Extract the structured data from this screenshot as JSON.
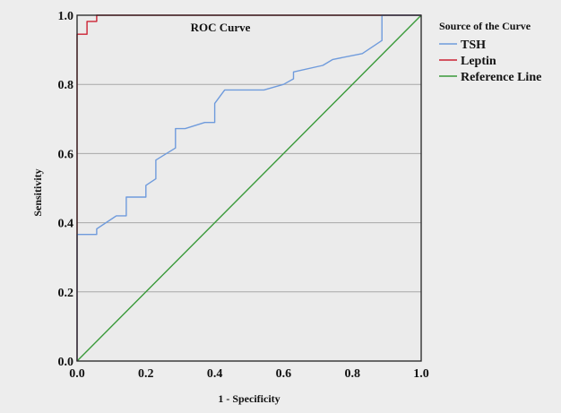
{
  "chart_data": {
    "type": "line",
    "title": "ROC Curve",
    "xlabel": "1 - Specificity",
    "ylabel": "Sensitivity",
    "xlim": [
      0,
      1
    ],
    "ylim": [
      0,
      1
    ],
    "x_ticks": [
      "0.0",
      "0.2",
      "0.4",
      "0.6",
      "0.8",
      "1.0"
    ],
    "y_ticks": [
      "0.0",
      "0.2",
      "0.4",
      "0.6",
      "0.8",
      "1.0"
    ],
    "grid": "horizontal",
    "legend_title": "Source of the Curve",
    "legend_position": "right",
    "series": [
      {
        "name": "TSH",
        "color": "#6f9bdc",
        "points": [
          [
            0,
            0
          ],
          [
            0,
            0.366
          ],
          [
            0.057,
            0.366
          ],
          [
            0.057,
            0.382
          ],
          [
            0.114,
            0.42
          ],
          [
            0.143,
            0.42
          ],
          [
            0.143,
            0.474
          ],
          [
            0.2,
            0.474
          ],
          [
            0.2,
            0.508
          ],
          [
            0.229,
            0.527
          ],
          [
            0.229,
            0.581
          ],
          [
            0.286,
            0.616
          ],
          [
            0.286,
            0.672
          ],
          [
            0.314,
            0.672
          ],
          [
            0.371,
            0.69
          ],
          [
            0.4,
            0.69
          ],
          [
            0.4,
            0.745
          ],
          [
            0.429,
            0.784
          ],
          [
            0.543,
            0.784
          ],
          [
            0.6,
            0.8
          ],
          [
            0.629,
            0.816
          ],
          [
            0.629,
            0.836
          ],
          [
            0.714,
            0.855
          ],
          [
            0.743,
            0.872
          ],
          [
            0.829,
            0.889
          ],
          [
            0.886,
            0.927
          ],
          [
            0.886,
            1.0
          ],
          [
            1.0,
            1.0
          ]
        ]
      },
      {
        "name": "Leptin",
        "color": "#cc2233",
        "points": [
          [
            0,
            0
          ],
          [
            0,
            0.945
          ],
          [
            0.029,
            0.945
          ],
          [
            0.029,
            0.982
          ],
          [
            0.057,
            0.982
          ],
          [
            0.057,
            1.0
          ],
          [
            1.0,
            1.0
          ]
        ]
      },
      {
        "name": "Reference Line",
        "color": "#3a9a3a",
        "points": [
          [
            0,
            0
          ],
          [
            1,
            1
          ]
        ]
      }
    ]
  }
}
